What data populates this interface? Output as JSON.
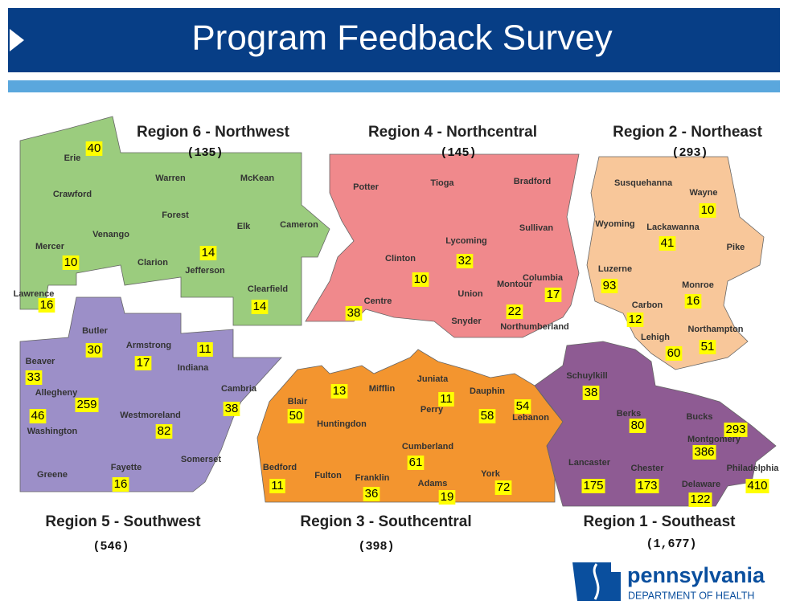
{
  "header": {
    "title": "Program Feedback Survey"
  },
  "regions": [
    {
      "name": "Region 6 - Northwest",
      "total": "(135)",
      "counties": [
        "Erie",
        "Crawford",
        "Warren",
        "McKean",
        "Forest",
        "Elk",
        "Cameron",
        "Mercer",
        "Venango",
        "Clarion",
        "Jefferson",
        "Clearfield",
        "Lawrence"
      ],
      "counts": [
        40,
        10,
        14,
        14,
        16
      ]
    },
    {
      "name": "Region 4 - Northcentral",
      "total": "(145)",
      "counties": [
        "Potter",
        "Tioga",
        "Bradford",
        "Sullivan",
        "Lycoming",
        "Clinton",
        "Columbia",
        "Montour",
        "Union",
        "Centre",
        "Snyder",
        "Northumberland"
      ],
      "counts": [
        32,
        10,
        17,
        22,
        38
      ]
    },
    {
      "name": "Region 2 - Northeast",
      "total": "(293)",
      "counties": [
        "Susquehanna",
        "Wayne",
        "Wyoming",
        "Lackawanna",
        "Pike",
        "Luzerne",
        "Monroe",
        "Carbon",
        "Northampton",
        "Lehigh"
      ],
      "counts": [
        10,
        41,
        93,
        16,
        12,
        60,
        51
      ]
    },
    {
      "name": "Region 5 - Southwest",
      "total": "(546)",
      "counties": [
        "Butler",
        "Armstrong",
        "Beaver",
        "Indiana",
        "Cambria",
        "Allegheny",
        "Westmoreland",
        "Washington",
        "Somerset",
        "Greene",
        "Fayette"
      ],
      "counts": [
        30,
        17,
        11,
        33,
        259,
        46,
        38,
        82,
        16
      ]
    },
    {
      "name": "Region 3 - Southcentral",
      "total": "(398)",
      "counties": [
        "Blair",
        "Mifflin",
        "Juniata",
        "Dauphin",
        "Huntingdon",
        "Perry",
        "Lebanon",
        "Cumberland",
        "Bedford",
        "Fulton",
        "Franklin",
        "York",
        "Adams"
      ],
      "counts": [
        13,
        11,
        54,
        50,
        58,
        61,
        11,
        36,
        19,
        72
      ]
    },
    {
      "name": "Region 1 - Southeast",
      "total": "(1,677)",
      "counties": [
        "Schuylkill",
        "Berks",
        "Bucks",
        "Montgomery",
        "Lancaster",
        "Chester",
        "Philadelphia",
        "Delaware"
      ],
      "counts": [
        38,
        80,
        293,
        386,
        175,
        173,
        410,
        122
      ]
    }
  ],
  "logo": {
    "name": "pennsylvania",
    "subtitle": "DEPARTMENT OF HEALTH"
  }
}
